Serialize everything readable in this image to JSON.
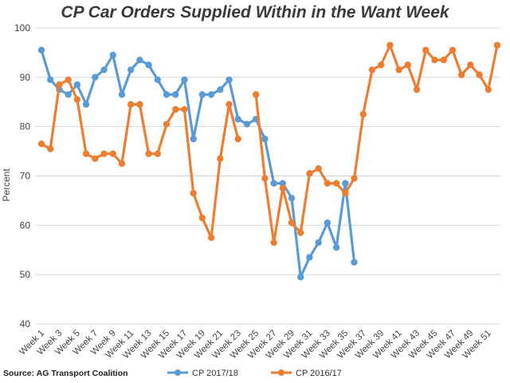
{
  "source": "Source: AG Transport Coalition",
  "chart_data": {
    "type": "line",
    "title": "CP Car Orders Supplied Within in the Want Week",
    "ylabel": "Percent",
    "xlabel": "",
    "ylim": [
      40,
      100
    ],
    "yticks": [
      40,
      50,
      60,
      70,
      80,
      90,
      100
    ],
    "grid": true,
    "legend_position": "bottom",
    "categories": [
      "Week 1",
      "Week 2",
      "Week 3",
      "Week 4",
      "Week 5",
      "Week 6",
      "Week 7",
      "Week 8",
      "Week 9",
      "Week 10",
      "Week 11",
      "Week 12",
      "Week 13",
      "Week 14",
      "Week 15",
      "Week 16",
      "Week 17",
      "Week 18",
      "Week 19",
      "Week 20",
      "Week 21",
      "Week 22",
      "Week 23",
      "Week 24",
      "Week 25",
      "Week 26",
      "Week 27",
      "Week 28",
      "Week 29",
      "Week 30",
      "Week 31",
      "Week 32",
      "Week 33",
      "Week 34",
      "Week 35",
      "Week 36",
      "Week 37",
      "Week 38",
      "Week 39",
      "Week 40",
      "Week 41",
      "Week 42",
      "Week 43",
      "Week 44",
      "Week 45",
      "Week 46",
      "Week 47",
      "Week 48",
      "Week 49",
      "Week 50",
      "Week 51",
      "Week 52"
    ],
    "tick_labels": [
      "Week 1",
      "Week 3",
      "Week 5",
      "Week 7",
      "Week 9",
      "Week 11",
      "Week 13",
      "Week 15",
      "Week 17",
      "Week 19",
      "Week 21",
      "Week 23",
      "Week 25",
      "Week 27",
      "Week 29",
      "Week 31",
      "Week 33",
      "Week 35",
      "Week 37",
      "Week 39",
      "Week 41",
      "Week 43",
      "Week 45",
      "Week 47",
      "Week 49",
      "Week 51"
    ],
    "series": [
      {
        "name": "CP 2017/18",
        "color": "#5B9BD5",
        "values": [
          95.5,
          89.5,
          87.5,
          86.5,
          88.5,
          84.5,
          90,
          91.5,
          94.5,
          86.5,
          91.5,
          93.5,
          92.5,
          89.5,
          86.5,
          86.5,
          89.5,
          77.5,
          86.5,
          86.5,
          87.5,
          89.5,
          81.5,
          80.5,
          81.5,
          77.5,
          68.5,
          68.5,
          65.5,
          49.5,
          53.5,
          56.5,
          60.5,
          55.5,
          68.5,
          52.5,
          null,
          null,
          null,
          null,
          null,
          null,
          null,
          null,
          null,
          null,
          null,
          null,
          null,
          null,
          null,
          null
        ]
      },
      {
        "name": "CP 2016/17",
        "color": "#ED7D31",
        "values": [
          76.5,
          75.5,
          88.5,
          89.5,
          85.5,
          74.5,
          73.5,
          74.5,
          74.5,
          72.5,
          84.5,
          84.5,
          74.5,
          74.5,
          80.5,
          83.5,
          83.5,
          66.5,
          61.5,
          57.5,
          73.5,
          84.5,
          77.5,
          null,
          86.5,
          69.5,
          56.5,
          67.5,
          60.5,
          58.5,
          70.5,
          71.5,
          68.5,
          68.5,
          66.5,
          69.5,
          82.5,
          91.5,
          92.5,
          96.5,
          91.5,
          92.5,
          87.5,
          95.5,
          93.5,
          93.5,
          95.5,
          90.5,
          92.5,
          90.5,
          87.5,
          96.5
        ]
      }
    ]
  }
}
